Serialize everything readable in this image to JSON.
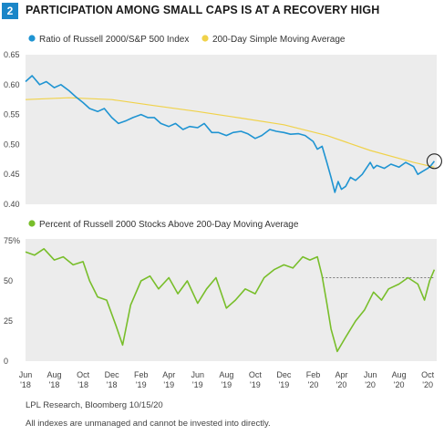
{
  "header": {
    "badge": "2",
    "title": "PARTICIPATION AMONG SMALL CAPS IS AT A RECOVERY HIGH"
  },
  "colors": {
    "ratio": "#1f94d2",
    "sma": "#f0d24a",
    "percent": "#78be2a",
    "panel": "#ececec",
    "badge": "#1a86c8"
  },
  "chart_data": [
    {
      "type": "line",
      "legend": [
        "Ratio of Russell 2000/S&P 500 Index",
        "200-Day Simple Moving Average"
      ],
      "legend_placement": "top",
      "ylim": [
        0.4,
        0.65
      ],
      "yticks": [
        0.4,
        0.45,
        0.5,
        0.55,
        0.6,
        0.65
      ],
      "ytick_labels": [
        "0.40",
        "0.45",
        "0.50",
        "0.55",
        "0.60",
        "0.65"
      ],
      "grid": false,
      "series": [
        {
          "name": "Ratio of Russell 2000/S&P 500 Index",
          "x": [
            "2018-06-01",
            "2018-06-15",
            "2018-07-01",
            "2018-07-15",
            "2018-08-01",
            "2018-08-15",
            "2018-09-01",
            "2018-09-15",
            "2018-10-01",
            "2018-10-15",
            "2018-11-01",
            "2018-11-15",
            "2018-12-01",
            "2018-12-15",
            "2019-01-01",
            "2019-01-15",
            "2019-02-01",
            "2019-02-15",
            "2019-03-01",
            "2019-03-15",
            "2019-04-01",
            "2019-04-15",
            "2019-05-01",
            "2019-05-15",
            "2019-06-01",
            "2019-06-15",
            "2019-07-01",
            "2019-07-15",
            "2019-08-01",
            "2019-08-15",
            "2019-09-01",
            "2019-09-15",
            "2019-10-01",
            "2019-10-15",
            "2019-11-01",
            "2019-11-15",
            "2019-12-01",
            "2019-12-15",
            "2020-01-01",
            "2020-01-15",
            "2020-02-01",
            "2020-02-10",
            "2020-02-20",
            "2020-03-01",
            "2020-03-10",
            "2020-03-18",
            "2020-03-25",
            "2020-04-01",
            "2020-04-10",
            "2020-04-20",
            "2020-05-01",
            "2020-05-15",
            "2020-06-01",
            "2020-06-08",
            "2020-06-15",
            "2020-07-01",
            "2020-07-15",
            "2020-08-01",
            "2020-08-15",
            "2020-09-01",
            "2020-09-10",
            "2020-09-20",
            "2020-10-01",
            "2020-10-08",
            "2020-10-15"
          ],
          "values": [
            0.605,
            0.615,
            0.6,
            0.605,
            0.595,
            0.6,
            0.59,
            0.58,
            0.57,
            0.56,
            0.555,
            0.56,
            0.545,
            0.535,
            0.54,
            0.545,
            0.55,
            0.545,
            0.545,
            0.535,
            0.53,
            0.535,
            0.525,
            0.53,
            0.528,
            0.535,
            0.52,
            0.52,
            0.515,
            0.52,
            0.522,
            0.518,
            0.51,
            0.515,
            0.525,
            0.522,
            0.52,
            0.517,
            0.518,
            0.515,
            0.505,
            0.492,
            0.497,
            0.47,
            0.445,
            0.42,
            0.438,
            0.425,
            0.43,
            0.445,
            0.44,
            0.45,
            0.47,
            0.46,
            0.465,
            0.46,
            0.467,
            0.462,
            0.47,
            0.463,
            0.45,
            0.455,
            0.46,
            0.465,
            0.472
          ]
        },
        {
          "name": "200-Day Simple Moving Average",
          "x": [
            "2018-06-01",
            "2018-09-01",
            "2018-12-01",
            "2019-03-01",
            "2019-06-01",
            "2019-09-01",
            "2019-12-01",
            "2020-03-01",
            "2020-06-01",
            "2020-09-01",
            "2020-10-15"
          ],
          "values": [
            0.575,
            0.578,
            0.575,
            0.565,
            0.555,
            0.544,
            0.533,
            0.515,
            0.49,
            0.47,
            0.462
          ]
        }
      ],
      "annotation": {
        "type": "circle",
        "x": "2020-10-15",
        "y": 0.472
      }
    },
    {
      "type": "line",
      "legend": [
        "Percent of Russell 2000 Stocks Above 200-Day Moving Average"
      ],
      "legend_placement": "top",
      "ylim": [
        0,
        75
      ],
      "yticks": [
        0,
        25,
        50,
        75
      ],
      "ytick_labels": [
        "0",
        "25",
        "50",
        "75%"
      ],
      "grid": false,
      "reference_line": {
        "y": 52,
        "from": "2020-02-20",
        "to": "2020-10-15",
        "style": "dashed"
      },
      "series": [
        {
          "name": "Percent of Russell 2000 Stocks Above 200-Day Moving Average",
          "x": [
            "2018-06-01",
            "2018-06-20",
            "2018-07-10",
            "2018-08-01",
            "2018-08-20",
            "2018-09-10",
            "2018-10-01",
            "2018-10-15",
            "2018-11-01",
            "2018-11-20",
            "2018-12-10",
            "2018-12-24",
            "2019-01-10",
            "2019-02-01",
            "2019-02-20",
            "2019-03-10",
            "2019-04-01",
            "2019-04-20",
            "2019-05-10",
            "2019-06-01",
            "2019-06-20",
            "2019-07-10",
            "2019-08-01",
            "2019-08-20",
            "2019-09-10",
            "2019-10-01",
            "2019-10-20",
            "2019-11-10",
            "2019-12-01",
            "2019-12-20",
            "2020-01-10",
            "2020-01-25",
            "2020-02-10",
            "2020-02-20",
            "2020-03-01",
            "2020-03-10",
            "2020-03-23",
            "2020-04-10",
            "2020-05-01",
            "2020-05-20",
            "2020-06-08",
            "2020-06-25",
            "2020-07-10",
            "2020-08-01",
            "2020-08-20",
            "2020-09-10",
            "2020-09-24",
            "2020-10-05",
            "2020-10-15"
          ],
          "values": [
            68,
            66,
            70,
            63,
            65,
            60,
            62,
            50,
            40,
            38,
            22,
            10,
            35,
            50,
            53,
            45,
            52,
            42,
            50,
            36,
            45,
            52,
            33,
            38,
            45,
            42,
            52,
            57,
            60,
            58,
            65,
            63,
            65,
            53,
            36,
            20,
            6,
            15,
            25,
            32,
            43,
            38,
            45,
            48,
            52,
            48,
            38,
            50,
            57
          ]
        }
      ]
    }
  ],
  "x_axis": {
    "tick_dates": [
      "2018-06-01",
      "2018-08-01",
      "2018-10-01",
      "2018-12-01",
      "2019-02-01",
      "2019-04-01",
      "2019-06-01",
      "2019-08-01",
      "2019-10-01",
      "2019-12-01",
      "2020-02-01",
      "2020-04-01",
      "2020-06-01",
      "2020-08-01",
      "2020-10-01"
    ],
    "tick_months": [
      "Jun",
      "Aug",
      "Oct",
      "Dec",
      "Feb",
      "Apr",
      "Jun",
      "Aug",
      "Oct",
      "Dec",
      "Feb",
      "Apr",
      "Jun",
      "Aug",
      "Oct"
    ],
    "tick_years": [
      "'18",
      "'18",
      "'18",
      "'18",
      "'19",
      "'19",
      "'19",
      "'19",
      "'19",
      "'19",
      "'20",
      "'20",
      "'20",
      "'20",
      "'20"
    ],
    "range": [
      "2018-06-01",
      "2020-10-20"
    ]
  },
  "source": "LPL Research, Bloomberg  10/15/20",
  "footnote": "All indexes are unmanaged and cannot be invested into directly."
}
